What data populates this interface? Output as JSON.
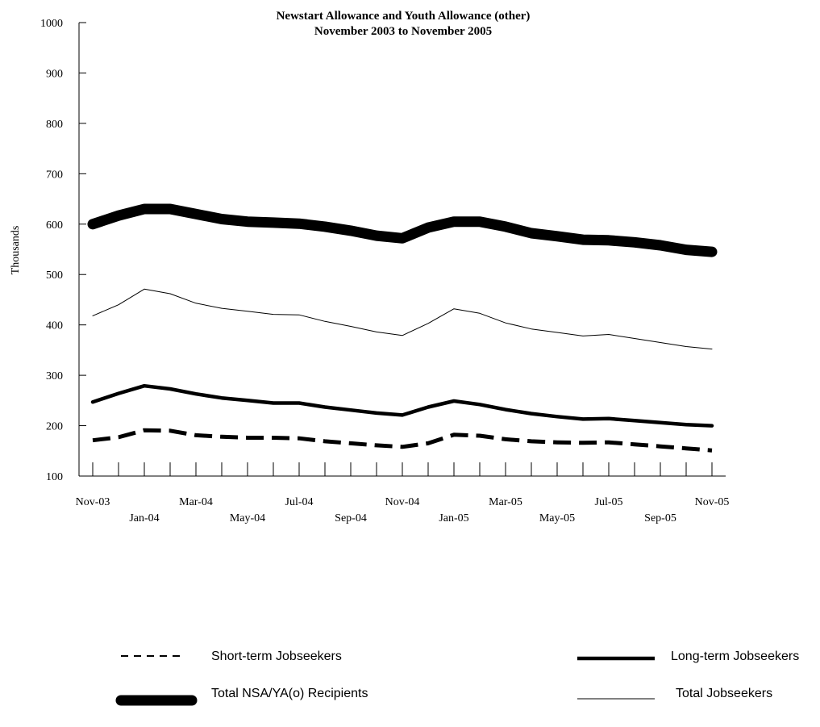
{
  "chart_data": {
    "type": "line",
    "title": "Newstart Allowance and Youth Allowance (other)",
    "subtitle": "November 2003 to November 2005",
    "ylabel": "Thousands",
    "xlabel": "",
    "ylim": [
      100,
      1000
    ],
    "yticks": [
      100,
      200,
      300,
      400,
      500,
      600,
      700,
      800,
      900,
      1000
    ],
    "x": [
      "Nov-03",
      "Dec-03",
      "Jan-04",
      "Feb-04",
      "Mar-04",
      "Apr-04",
      "May-04",
      "Jun-04",
      "Jul-04",
      "Aug-04",
      "Sep-04",
      "Oct-04",
      "Nov-04",
      "Dec-04",
      "Jan-05",
      "Feb-05",
      "Mar-05",
      "Apr-05",
      "May-05",
      "Jun-05",
      "Jul-05",
      "Aug-05",
      "Sep-05",
      "Oct-05",
      "Nov-05"
    ],
    "x_labels": [
      {
        "label": "Nov-03",
        "index": 0,
        "row": 1
      },
      {
        "label": "Jan-04",
        "index": 2,
        "row": 2
      },
      {
        "label": "Mar-04",
        "index": 4,
        "row": 1
      },
      {
        "label": "May-04",
        "index": 6,
        "row": 2
      },
      {
        "label": "Jul-04",
        "index": 8,
        "row": 1
      },
      {
        "label": "Sep-04",
        "index": 10,
        "row": 2
      },
      {
        "label": "Nov-04",
        "index": 12,
        "row": 1
      },
      {
        "label": "Jan-05",
        "index": 14,
        "row": 2
      },
      {
        "label": "Mar-05",
        "index": 16,
        "row": 1
      },
      {
        "label": "May-05",
        "index": 18,
        "row": 2
      },
      {
        "label": "Jul-05",
        "index": 20,
        "row": 1
      },
      {
        "label": "Sep-05",
        "index": 22,
        "row": 2
      },
      {
        "label": "Nov-05",
        "index": 24,
        "row": 1
      }
    ],
    "series": [
      {
        "name": "Total NSA/YA(o) Recipients",
        "style": "very-thick",
        "values": [
          600,
          617,
          630,
          630,
          620,
          610,
          605,
          603,
          601,
          595,
          587,
          577,
          572,
          593,
          605,
          605,
          595,
          582,
          576,
          569,
          568,
          564,
          558,
          549,
          545
        ]
      },
      {
        "name": "Total Jobseekers",
        "style": "thin",
        "values": [
          418,
          440,
          471,
          462,
          443,
          433,
          427,
          421,
          420,
          407,
          397,
          386,
          379,
          403,
          432,
          423,
          404,
          392,
          385,
          378,
          381,
          373,
          365,
          357,
          352
        ]
      },
      {
        "name": "Long-term Jobseekers",
        "style": "thick",
        "values": [
          247,
          264,
          279,
          273,
          263,
          255,
          250,
          245,
          245,
          237,
          231,
          225,
          221,
          237,
          249,
          242,
          232,
          224,
          218,
          213,
          214,
          210,
          206,
          202,
          200
        ]
      },
      {
        "name": "Short-term Jobseekers",
        "style": "thick-dashed",
        "values": [
          171,
          177,
          191,
          190,
          181,
          178,
          176,
          176,
          175,
          169,
          165,
          161,
          158,
          165,
          182,
          180,
          173,
          169,
          167,
          166,
          167,
          163,
          159,
          155,
          151
        ]
      }
    ],
    "legend": {
      "placement": "bottom",
      "items": [
        {
          "name": "Short-term Jobseekers",
          "style": "dashed-medium"
        },
        {
          "name": "Long-term Jobseekers",
          "style": "thick"
        },
        {
          "name": "Total NSA/YA(o) Recipients",
          "style": "very-thick"
        },
        {
          "name": "Total Jobseekers",
          "style": "thin"
        }
      ]
    },
    "grid": false
  }
}
